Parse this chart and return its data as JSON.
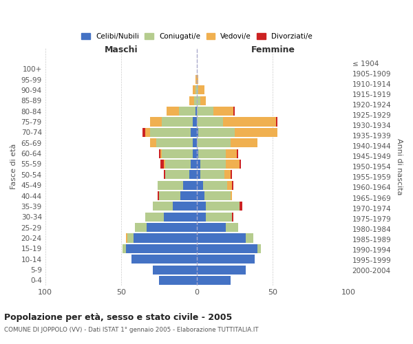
{
  "age_groups": [
    "0-4",
    "5-9",
    "10-14",
    "15-19",
    "20-24",
    "25-29",
    "30-34",
    "35-39",
    "40-44",
    "45-49",
    "50-54",
    "55-59",
    "60-64",
    "65-69",
    "70-74",
    "75-79",
    "80-84",
    "85-89",
    "90-94",
    "95-99",
    "100+"
  ],
  "birth_years": [
    "2000-2004",
    "1995-1999",
    "1990-1994",
    "1985-1989",
    "1980-1984",
    "1975-1979",
    "1970-1974",
    "1965-1969",
    "1960-1964",
    "1955-1959",
    "1950-1954",
    "1945-1949",
    "1940-1944",
    "1935-1939",
    "1930-1934",
    "1925-1929",
    "1920-1924",
    "1915-1919",
    "1910-1914",
    "1905-1909",
    "≤ 1904"
  ],
  "maschi": {
    "celibi": [
      25,
      29,
      43,
      47,
      42,
      33,
      22,
      16,
      11,
      9,
      5,
      4,
      3,
      3,
      4,
      3,
      1,
      0,
      0,
      0,
      0
    ],
    "coniugati": [
      0,
      0,
      0,
      2,
      4,
      8,
      12,
      13,
      14,
      17,
      16,
      17,
      20,
      24,
      27,
      20,
      11,
      2,
      1,
      0,
      0
    ],
    "vedovi": [
      0,
      0,
      0,
      0,
      1,
      0,
      0,
      0,
      0,
      0,
      0,
      1,
      1,
      4,
      3,
      8,
      8,
      3,
      2,
      1,
      0
    ],
    "divorziati": [
      0,
      0,
      0,
      0,
      0,
      0,
      0,
      0,
      1,
      0,
      1,
      2,
      1,
      0,
      2,
      0,
      0,
      0,
      0,
      0,
      0
    ]
  },
  "femmine": {
    "nubili": [
      22,
      32,
      38,
      40,
      32,
      19,
      6,
      6,
      5,
      4,
      2,
      2,
      1,
      0,
      1,
      0,
      0,
      0,
      0,
      0,
      0
    ],
    "coniugate": [
      0,
      0,
      0,
      2,
      5,
      8,
      17,
      22,
      17,
      16,
      16,
      17,
      18,
      22,
      24,
      17,
      11,
      2,
      1,
      0,
      0
    ],
    "vedove": [
      0,
      0,
      0,
      0,
      0,
      0,
      0,
      0,
      1,
      3,
      4,
      9,
      7,
      18,
      28,
      35,
      13,
      4,
      4,
      1,
      0
    ],
    "divorziate": [
      0,
      0,
      0,
      0,
      0,
      0,
      1,
      2,
      0,
      1,
      1,
      1,
      1,
      0,
      0,
      1,
      1,
      0,
      0,
      0,
      0
    ]
  },
  "colors": {
    "celibi_nubili": "#4472c4",
    "coniugati": "#b5cc8e",
    "vedovi": "#f0b050",
    "divorziati": "#cc2222"
  },
  "xlim": [
    -100,
    100
  ],
  "xticks": [
    -100,
    -50,
    0,
    50,
    100
  ],
  "xticklabels": [
    "100",
    "50",
    "0",
    "50",
    "100"
  ],
  "title": "Popolazione per età, sesso e stato civile - 2005",
  "subtitle": "COMUNE DI JOPPOLO (VV) - Dati ISTAT 1° gennaio 2005 - Elaborazione TUTTITALIA.IT",
  "ylabel_left": "Fasce di età",
  "ylabel_right": "Anni di nascita",
  "label_maschi": "Maschi",
  "label_femmine": "Femmine",
  "legend_labels": [
    "Celibi/Nubili",
    "Coniugati/e",
    "Vedovi/e",
    "Divorziati/e"
  ],
  "background_color": "#ffffff",
  "grid_color": "#cccccc"
}
